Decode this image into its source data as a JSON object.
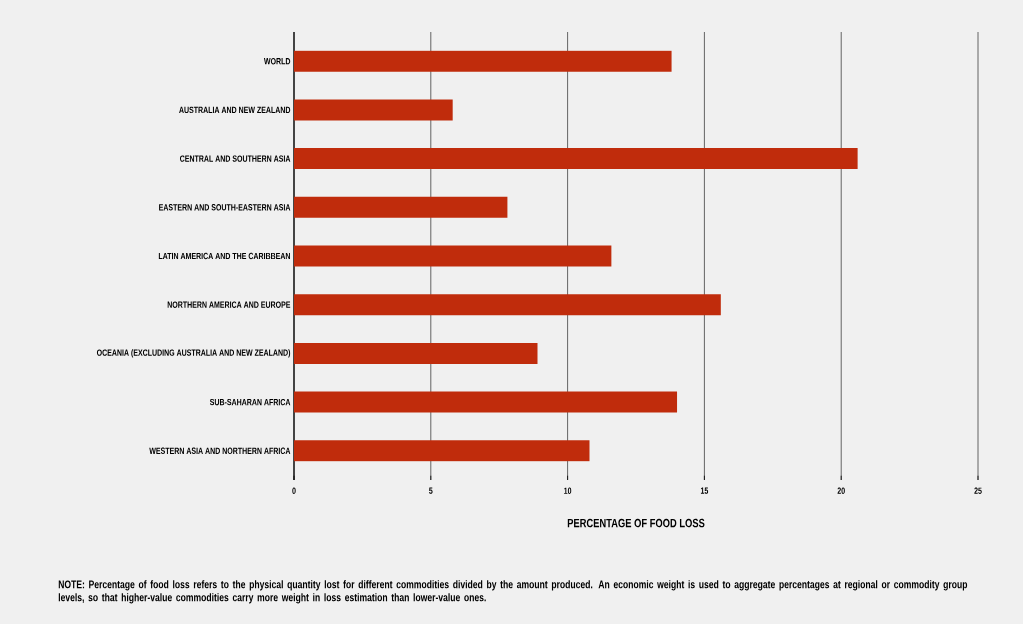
{
  "chart_data": {
    "type": "bar",
    "orientation": "horizontal",
    "xlabel": "PERCENTAGE OF FOOD LOSS",
    "categories": [
      "WORLD",
      "AUSTRALIA AND NEW ZEALAND",
      "CENTRAL AND SOUTHERN ASIA",
      "EASTERN AND SOUTH-EASTERN ASIA",
      "LATIN AMERICA AND THE CARIBBEAN",
      "NORTHERN AMERICA AND EUROPE",
      "OCEANIA (EXCLUDING AUSTRALIA AND NEW ZEALAND)",
      "SUB-SAHARAN AFRICA",
      "WESTERN ASIA AND NORTHERN AFRICA"
    ],
    "values": [
      13.8,
      5.8,
      20.6,
      7.8,
      11.6,
      15.6,
      8.9,
      14.0,
      10.8
    ],
    "color": "#c02c0c",
    "xlim": [
      0,
      25
    ],
    "xticks": [
      0,
      5,
      10,
      15,
      20,
      25
    ],
    "grid": "x",
    "annotations": [
      "NOTE: Percentage of food loss refers to the physical quantity lost for different commodities divided by the amount produced. An economic weight is used to aggregate percentages at regional or commodity group levels, so that higher-value commodities carry more weight in loss estimation than lower-value ones."
    ]
  }
}
